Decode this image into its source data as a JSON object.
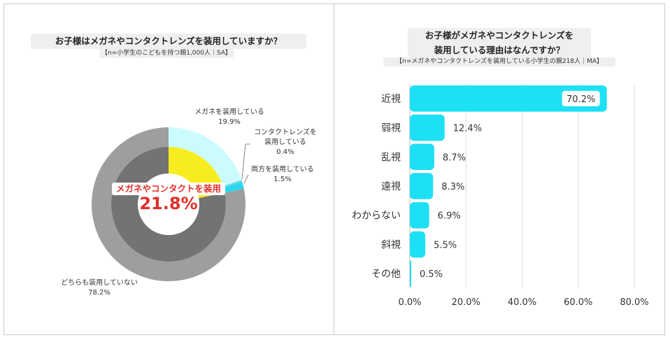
{
  "left": {
    "title": "お子様はメガネやコンタクトレンズを装用していますか？",
    "subtitle": "【n=小学生のこどもを持つ親1,000人｜SA】",
    "center_label": "メガネやコンタクトを装用",
    "center_value": "21.8%",
    "labels": {
      "glasses_name": "メガネを装用している",
      "glasses_pct": "19.9%",
      "contact_name_1": "コンタクトレンズを",
      "contact_name_2": "装用している",
      "contact_pct": "0.4%",
      "both_name": "両方を装用している",
      "both_pct": "1.5%",
      "neither_name": "どちらも装用していない",
      "neither_pct": "78.2%"
    }
  },
  "right": {
    "title_line1": "お子様がメガネやコンタクトレンズを",
    "title_line2": "装用している理由はなんですか？",
    "subtitle": "【n=メガネやコンタクトレンズを装用している小学生の親218人｜MA】"
  },
  "chart_data": [
    {
      "type": "pie",
      "title": "お子様はメガネやコンタクトレンズを装用していますか？",
      "outer_ring": {
        "categories": [
          "メガネを装用している",
          "コンタクトレンズを装用している",
          "両方を装用している",
          "どちらも装用していない"
        ],
        "values": [
          19.9,
          0.4,
          1.5,
          78.2
        ]
      },
      "inner_ring": {
        "categories": [
          "メガネやコンタクトを装用",
          "どちらも装用していない"
        ],
        "values": [
          21.8,
          78.2
        ]
      },
      "colors": [
        "#ccfbfd",
        "#66d8ea",
        "#2fd6f0",
        "#9e9e9e"
      ],
      "inner_colors": [
        "#f7ec1f",
        "#737373"
      ]
    },
    {
      "type": "bar",
      "orientation": "horizontal",
      "title": "お子様がメガネやコンタクトレンズを装用している理由はなんですか？",
      "categories": [
        "近視",
        "弱視",
        "乱視",
        "遠視",
        "わからない",
        "斜視",
        "その他"
      ],
      "values": [
        70.2,
        12.4,
        8.7,
        8.3,
        6.9,
        5.5,
        0.5
      ],
      "value_labels": [
        "70.2%",
        "12.4%",
        "8.7%",
        "8.3%",
        "6.9%",
        "5.5%",
        "0.5%"
      ],
      "xlim": [
        0,
        80
      ],
      "xticks": [
        "0.0%",
        "20.0%",
        "40.0%",
        "60.0%",
        "80.0%"
      ],
      "grid": true,
      "bar_color": "#1ee0f5"
    }
  ]
}
